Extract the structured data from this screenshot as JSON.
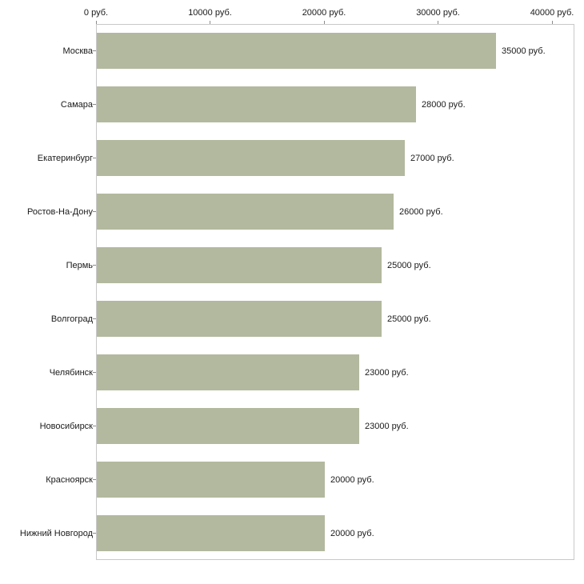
{
  "chart_data": {
    "type": "bar",
    "orientation": "horizontal",
    "title": "",
    "xlabel": "",
    "ylabel": "",
    "xlim": [
      0,
      40000
    ],
    "grid": false,
    "legend": false,
    "unit": "руб.",
    "bar_color": "#b3b99e",
    "axis_color": "#c9c9c9",
    "tick_color": "#8c8c8c",
    "text_color": "#1a1a1a",
    "x_ticks": [
      {
        "value": 0,
        "label": "0 руб."
      },
      {
        "value": 10000,
        "label": "10000 руб."
      },
      {
        "value": 20000,
        "label": "20000 руб."
      },
      {
        "value": 30000,
        "label": "30000 руб."
      },
      {
        "value": 40000,
        "label": "40000 руб."
      }
    ],
    "categories": [
      "Москва",
      "Самара",
      "Екатеринбург",
      "Ростов-На-Дону",
      "Пермь",
      "Волгоград",
      "Челябинск",
      "Новосибирск",
      "Красноярск",
      "Нижний Новгород"
    ],
    "values": [
      35000,
      28000,
      27000,
      26000,
      25000,
      25000,
      23000,
      23000,
      20000,
      20000
    ],
    "bars": [
      {
        "category": "Москва",
        "value": 35000,
        "label": "35000 руб."
      },
      {
        "category": "Самара",
        "value": 28000,
        "label": "28000 руб."
      },
      {
        "category": "Екатеринбург",
        "value": 27000,
        "label": "27000 руб."
      },
      {
        "category": "Ростов-На-Дону",
        "value": 26000,
        "label": "26000 руб."
      },
      {
        "category": "Пермь",
        "value": 25000,
        "label": "25000 руб."
      },
      {
        "category": "Волгоград",
        "value": 25000,
        "label": "25000 руб."
      },
      {
        "category": "Челябинск",
        "value": 23000,
        "label": "23000 руб."
      },
      {
        "category": "Новосибирск",
        "value": 23000,
        "label": "23000 руб."
      },
      {
        "category": "Красноярск",
        "value": 20000,
        "label": "20000 руб."
      },
      {
        "category": "Нижний Новгород",
        "value": 20000,
        "label": "20000 руб."
      }
    ]
  }
}
